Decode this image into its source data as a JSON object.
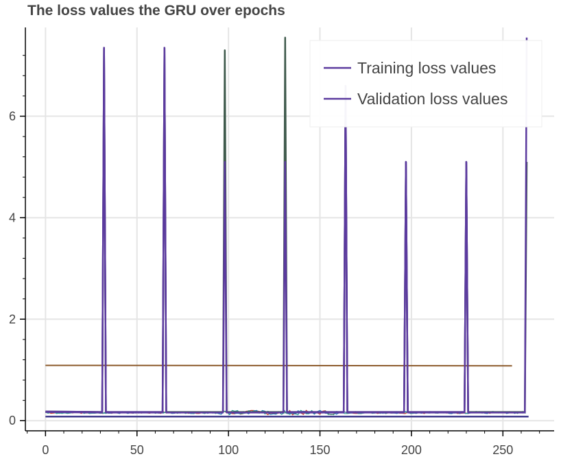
{
  "chart_data": {
    "type": "line",
    "title": "The loss values the GRU over epochs",
    "xlabel": "",
    "ylabel": "",
    "xlim": [
      -11,
      278
    ],
    "ylim": [
      -0.2,
      7.75
    ],
    "x_ticks": [
      0,
      50,
      100,
      150,
      200,
      250
    ],
    "x_tick_labels": [
      "0",
      "50",
      "100",
      "150",
      "200",
      "250"
    ],
    "y_ticks": [
      0,
      2,
      4,
      6
    ],
    "y_tick_labels": [
      "0",
      "2",
      "4",
      "6"
    ],
    "grid": true,
    "legend_position": "top-right",
    "legend": [
      "Training loss values",
      "Validation loss values"
    ],
    "colors": {
      "training": "#5b3a9e",
      "validation": "#5b3a9e",
      "extra_val_spikes": "#3f5a4c",
      "flat_line": "#8c5a2b",
      "bottom_line": "#3f3a8c",
      "noise_red": "#c0392b",
      "noise_blue": "#1f77b4",
      "noise_teal": "#2a9d8f"
    },
    "series": [
      {
        "name": "Training loss values",
        "x": [
          0,
          31,
          32,
          33,
          64,
          65,
          66,
          97,
          98,
          99,
          130,
          131,
          132,
          163,
          164,
          165,
          196,
          197,
          198,
          229,
          230,
          231,
          262,
          263
        ],
        "values": [
          0.17,
          0.16,
          7.35,
          0.16,
          0.16,
          7.35,
          0.16,
          0.16,
          5.1,
          0.16,
          0.16,
          5.1,
          0.16,
          0.16,
          6.6,
          0.16,
          0.16,
          5.1,
          0.16,
          0.16,
          5.1,
          0.16,
          0.16,
          7.55
        ]
      },
      {
        "name": "Validation loss values",
        "x": [
          0,
          31,
          32,
          33,
          64,
          65,
          66,
          97,
          98,
          99,
          130,
          131,
          132,
          163,
          164,
          165,
          196,
          197,
          198,
          229,
          230,
          231,
          262,
          263
        ],
        "values": [
          0.18,
          0.17,
          7.35,
          0.17,
          0.17,
          7.35,
          0.17,
          0.17,
          7.3,
          0.17,
          0.17,
          7.55,
          0.17,
          0.17,
          6.6,
          0.17,
          0.17,
          5.1,
          0.17,
          0.17,
          5.1,
          0.17,
          0.17,
          5.1
        ]
      },
      {
        "x": [
          0,
          255
        ],
        "values": [
          1.09,
          1.08
        ]
      },
      {
        "x": [
          0,
          264
        ],
        "values": [
          0.08,
          0.08
        ]
      }
    ]
  }
}
